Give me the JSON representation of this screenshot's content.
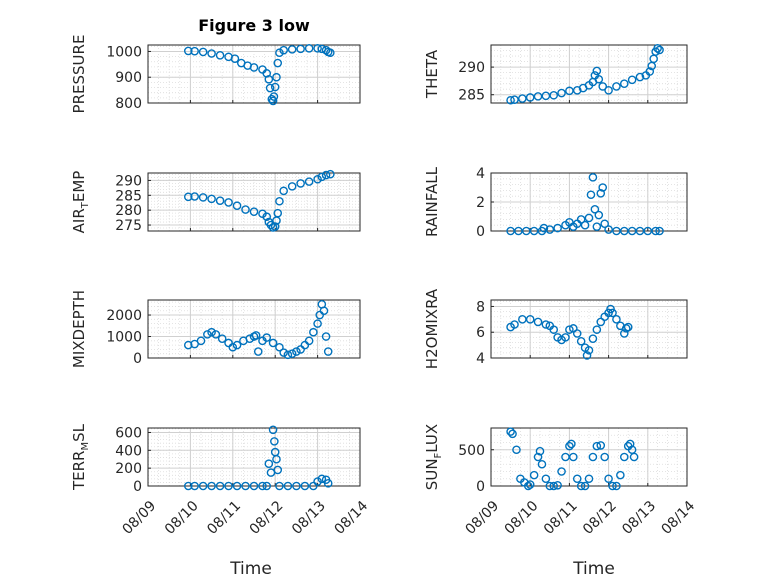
{
  "figure_title": "Figure 3 low",
  "marker_color": "#0072BD",
  "chart_data": [
    {
      "type": "scatter",
      "ylabel": "PRESSURE",
      "yticks": [
        800,
        900,
        1000
      ],
      "ylim": [
        800,
        1025
      ],
      "xlim": [
        "08/09",
        "08/14"
      ],
      "xticks": [],
      "points": [
        [
          9.95,
          1002
        ],
        [
          10.1,
          1001
        ],
        [
          10.3,
          998
        ],
        [
          10.5,
          992
        ],
        [
          10.7,
          985
        ],
        [
          10.9,
          979
        ],
        [
          11.05,
          972
        ],
        [
          11.2,
          955
        ],
        [
          11.35,
          945
        ],
        [
          11.5,
          938
        ],
        [
          11.7,
          930
        ],
        [
          11.8,
          915
        ],
        [
          11.85,
          892
        ],
        [
          11.88,
          858
        ],
        [
          11.92,
          815
        ],
        [
          11.95,
          808
        ],
        [
          11.97,
          825
        ],
        [
          12.0,
          862
        ],
        [
          12.03,
          900
        ],
        [
          12.06,
          955
        ],
        [
          12.1,
          995
        ],
        [
          12.2,
          1005
        ],
        [
          12.4,
          1008
        ],
        [
          12.6,
          1010
        ],
        [
          12.8,
          1012
        ],
        [
          13.0,
          1012
        ],
        [
          13.1,
          1010
        ],
        [
          13.2,
          1005
        ],
        [
          13.25,
          998
        ],
        [
          13.3,
          995
        ]
      ]
    },
    {
      "type": "scatter",
      "ylabel": "THETA",
      "yticks": [
        285,
        290
      ],
      "ylim": [
        283.5,
        294
      ],
      "xlim": [
        "08/09",
        "08/14"
      ],
      "xticks": [],
      "points": [
        [
          9.5,
          284.0
        ],
        [
          9.6,
          284.1
        ],
        [
          9.8,
          284.3
        ],
        [
          10.0,
          284.5
        ],
        [
          10.2,
          284.7
        ],
        [
          10.4,
          284.8
        ],
        [
          10.6,
          284.9
        ],
        [
          10.8,
          285.3
        ],
        [
          11.0,
          285.7
        ],
        [
          11.2,
          285.8
        ],
        [
          11.35,
          286.2
        ],
        [
          11.5,
          286.7
        ],
        [
          11.6,
          287.3
        ],
        [
          11.65,
          288.5
        ],
        [
          11.7,
          289.3
        ],
        [
          11.75,
          287.8
        ],
        [
          11.85,
          286.5
        ],
        [
          12.0,
          285.8
        ],
        [
          12.2,
          286.5
        ],
        [
          12.4,
          287.0
        ],
        [
          12.6,
          287.7
        ],
        [
          12.8,
          288.2
        ],
        [
          12.95,
          288.5
        ],
        [
          13.05,
          289.2
        ],
        [
          13.1,
          290.2
        ],
        [
          13.15,
          291.5
        ],
        [
          13.2,
          292.8
        ],
        [
          13.25,
          293.4
        ],
        [
          13.3,
          293.1
        ]
      ]
    },
    {
      "type": "scatter",
      "ylabel": "AIR",
      "ylabel_sub": "T",
      "ylabel_suffix": "EMP",
      "yticks": [
        275,
        280,
        285,
        290
      ],
      "ylim": [
        273,
        292.5
      ],
      "xlim": [
        "08/09",
        "08/14"
      ],
      "xticks": [],
      "points": [
        [
          9.95,
          284.5
        ],
        [
          10.1,
          284.6
        ],
        [
          10.3,
          284.3
        ],
        [
          10.5,
          283.8
        ],
        [
          10.7,
          283.2
        ],
        [
          10.9,
          282.6
        ],
        [
          11.1,
          281.5
        ],
        [
          11.3,
          280.2
        ],
        [
          11.5,
          279.5
        ],
        [
          11.7,
          278.8
        ],
        [
          11.8,
          277.8
        ],
        [
          11.85,
          276.0
        ],
        [
          11.9,
          275.0
        ],
        [
          11.95,
          274.2
        ],
        [
          12.0,
          274.5
        ],
        [
          12.03,
          276.5
        ],
        [
          12.06,
          279.0
        ],
        [
          12.1,
          283.0
        ],
        [
          12.2,
          286.5
        ],
        [
          12.4,
          288.0
        ],
        [
          12.6,
          289.0
        ],
        [
          12.8,
          289.6
        ],
        [
          13.0,
          290.4
        ],
        [
          13.1,
          291.2
        ],
        [
          13.2,
          291.8
        ],
        [
          13.3,
          292.1
        ]
      ]
    },
    {
      "type": "scatter",
      "ylabel": "RAINFALL",
      "yticks": [
        0,
        2,
        4
      ],
      "ylim": [
        0,
        4
      ],
      "xlim": [
        "08/09",
        "08/14"
      ],
      "xticks": [],
      "points": [
        [
          9.5,
          0
        ],
        [
          9.7,
          0
        ],
        [
          9.9,
          0
        ],
        [
          10.1,
          0
        ],
        [
          10.3,
          0
        ],
        [
          10.35,
          0.2
        ],
        [
          10.5,
          0.1
        ],
        [
          10.7,
          0.2
        ],
        [
          10.9,
          0.4
        ],
        [
          11.0,
          0.6
        ],
        [
          11.1,
          0.3
        ],
        [
          11.2,
          0.5
        ],
        [
          11.3,
          0.8
        ],
        [
          11.4,
          0.4
        ],
        [
          11.5,
          0.9
        ],
        [
          11.55,
          2.5
        ],
        [
          11.6,
          3.7
        ],
        [
          11.65,
          1.5
        ],
        [
          11.7,
          0.3
        ],
        [
          11.75,
          1.1
        ],
        [
          11.8,
          2.6
        ],
        [
          11.85,
          3.0
        ],
        [
          11.9,
          0.5
        ],
        [
          12.0,
          0.1
        ],
        [
          12.2,
          0
        ],
        [
          12.4,
          0
        ],
        [
          12.6,
          0
        ],
        [
          12.8,
          0
        ],
        [
          13.0,
          0
        ],
        [
          13.2,
          0
        ],
        [
          13.3,
          0
        ]
      ]
    },
    {
      "type": "scatter",
      "ylabel": "MIXDEPTH",
      "yticks": [
        0,
        1000,
        2000
      ],
      "ylim": [
        0,
        2700
      ],
      "xlim": [
        "08/09",
        "08/14"
      ],
      "xticks": [],
      "points": [
        [
          9.95,
          600
        ],
        [
          10.1,
          650
        ],
        [
          10.25,
          800
        ],
        [
          10.4,
          1100
        ],
        [
          10.5,
          1200
        ],
        [
          10.6,
          1100
        ],
        [
          10.75,
          900
        ],
        [
          10.9,
          700
        ],
        [
          11.0,
          500
        ],
        [
          11.1,
          600
        ],
        [
          11.25,
          800
        ],
        [
          11.4,
          900
        ],
        [
          11.5,
          1000
        ],
        [
          11.55,
          1050
        ],
        [
          11.6,
          300
        ],
        [
          11.7,
          800
        ],
        [
          11.8,
          950
        ],
        [
          11.95,
          700
        ],
        [
          12.1,
          500
        ],
        [
          12.2,
          250
        ],
        [
          12.3,
          150
        ],
        [
          12.4,
          200
        ],
        [
          12.5,
          300
        ],
        [
          12.6,
          400
        ],
        [
          12.7,
          600
        ],
        [
          12.8,
          800
        ],
        [
          12.9,
          1200
        ],
        [
          13.0,
          1600
        ],
        [
          13.05,
          2000
        ],
        [
          13.1,
          2500
        ],
        [
          13.15,
          2200
        ],
        [
          13.2,
          1000
        ],
        [
          13.25,
          300
        ]
      ]
    },
    {
      "type": "scatter",
      "ylabel": "H2OMIXRA",
      "yticks": [
        4,
        6,
        8
      ],
      "ylim": [
        4,
        8.5
      ],
      "xlim": [
        "08/09",
        "08/14"
      ],
      "xticks": [],
      "points": [
        [
          9.5,
          6.4
        ],
        [
          9.6,
          6.6
        ],
        [
          9.8,
          7.0
        ],
        [
          10.0,
          7.0
        ],
        [
          10.2,
          6.8
        ],
        [
          10.4,
          6.6
        ],
        [
          10.5,
          6.5
        ],
        [
          10.6,
          6.2
        ],
        [
          10.7,
          5.6
        ],
        [
          10.8,
          5.4
        ],
        [
          10.9,
          5.6
        ],
        [
          11.0,
          6.2
        ],
        [
          11.1,
          6.3
        ],
        [
          11.2,
          5.9
        ],
        [
          11.3,
          5.3
        ],
        [
          11.4,
          4.8
        ],
        [
          11.45,
          4.2
        ],
        [
          11.5,
          4.6
        ],
        [
          11.6,
          5.5
        ],
        [
          11.7,
          6.2
        ],
        [
          11.8,
          6.8
        ],
        [
          11.9,
          7.2
        ],
        [
          12.0,
          7.5
        ],
        [
          12.05,
          7.8
        ],
        [
          12.1,
          7.5
        ],
        [
          12.2,
          7.0
        ],
        [
          12.3,
          6.5
        ],
        [
          12.4,
          5.9
        ],
        [
          12.45,
          6.3
        ],
        [
          12.5,
          6.4
        ]
      ]
    },
    {
      "type": "scatter",
      "ylabel": "TERR",
      "ylabel_sub": "M",
      "ylabel_suffix": "SL",
      "yticks": [
        0,
        200,
        400,
        600
      ],
      "ylim": [
        0,
        650
      ],
      "xlim": [
        "08/09",
        "08/14"
      ],
      "xticks": [
        "08/09",
        "08/10",
        "08/11",
        "08/12",
        "08/13",
        "08/14"
      ],
      "points": [
        [
          9.95,
          0
        ],
        [
          10.1,
          0
        ],
        [
          10.3,
          0
        ],
        [
          10.5,
          0
        ],
        [
          10.7,
          0
        ],
        [
          10.9,
          0
        ],
        [
          11.1,
          0
        ],
        [
          11.3,
          0
        ],
        [
          11.5,
          0
        ],
        [
          11.7,
          0
        ],
        [
          11.8,
          0
        ],
        [
          11.85,
          250
        ],
        [
          11.9,
          150
        ],
        [
          11.95,
          630
        ],
        [
          11.98,
          500
        ],
        [
          12.0,
          380
        ],
        [
          12.03,
          300
        ],
        [
          12.06,
          180
        ],
        [
          12.1,
          0
        ],
        [
          12.3,
          0
        ],
        [
          12.5,
          0
        ],
        [
          12.7,
          0
        ],
        [
          12.9,
          0
        ],
        [
          13.0,
          50
        ],
        [
          13.1,
          80
        ],
        [
          13.2,
          70
        ],
        [
          13.25,
          30
        ]
      ]
    },
    {
      "type": "scatter",
      "ylabel": "SUN",
      "ylabel_sub": "F",
      "ylabel_suffix": "LUX",
      "yticks": [
        0,
        500
      ],
      "ylim": [
        0,
        800
      ],
      "xlim": [
        "08/09",
        "08/14"
      ],
      "xticks": [
        "08/09",
        "08/10",
        "08/11",
        "08/12",
        "08/13",
        "08/14"
      ],
      "points": [
        [
          9.5,
          750
        ],
        [
          9.55,
          720
        ],
        [
          9.65,
          500
        ],
        [
          9.75,
          100
        ],
        [
          9.85,
          50
        ],
        [
          9.95,
          0
        ],
        [
          10.0,
          20
        ],
        [
          10.1,
          150
        ],
        [
          10.2,
          400
        ],
        [
          10.25,
          480
        ],
        [
          10.3,
          300
        ],
        [
          10.4,
          100
        ],
        [
          10.5,
          0
        ],
        [
          10.6,
          0
        ],
        [
          10.7,
          10
        ],
        [
          10.8,
          200
        ],
        [
          10.9,
          400
        ],
        [
          11.0,
          550
        ],
        [
          11.05,
          580
        ],
        [
          11.1,
          400
        ],
        [
          11.2,
          100
        ],
        [
          11.3,
          0
        ],
        [
          11.4,
          0
        ],
        [
          11.5,
          100
        ],
        [
          11.6,
          400
        ],
        [
          11.7,
          550
        ],
        [
          11.8,
          560
        ],
        [
          11.9,
          400
        ],
        [
          12.0,
          100
        ],
        [
          12.1,
          0
        ],
        [
          12.2,
          0
        ],
        [
          12.3,
          150
        ],
        [
          12.4,
          400
        ],
        [
          12.5,
          550
        ],
        [
          12.55,
          580
        ],
        [
          12.6,
          500
        ],
        [
          12.65,
          400
        ]
      ]
    }
  ],
  "xlabel": "Time"
}
